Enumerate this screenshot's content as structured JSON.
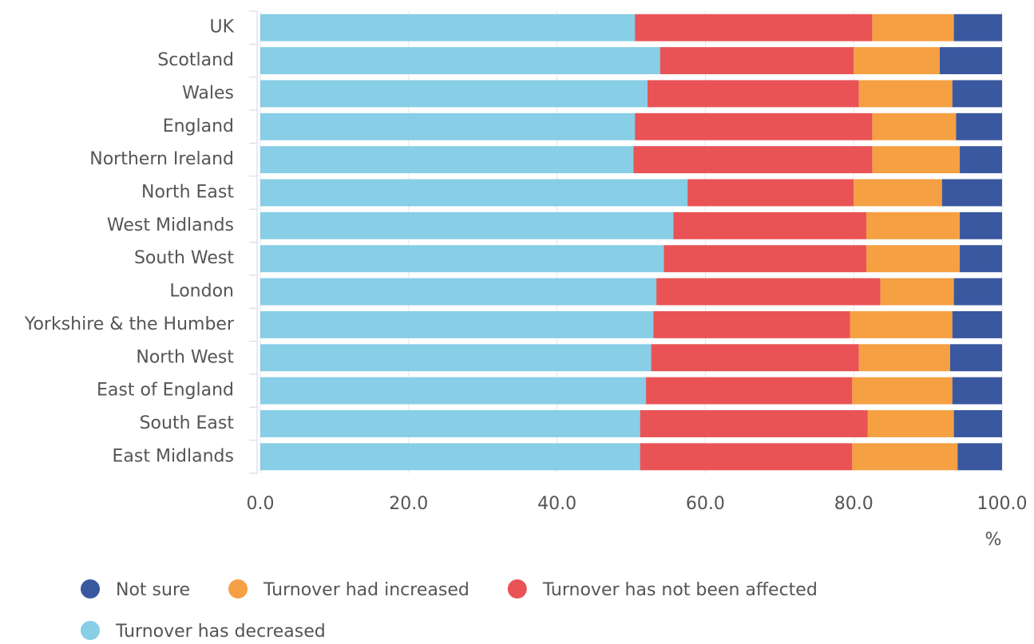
{
  "chart_data": {
    "type": "stacked_barh",
    "categories": [
      "UK",
      "Scotland",
      "Wales",
      "England",
      "Northern Ireland",
      "North East",
      "West Midlands",
      "South West",
      "London",
      "Yorkshire & the Humber",
      "North West",
      "East of England",
      "South East",
      "East Midlands"
    ],
    "series": [
      {
        "name": "Turnover has decreased",
        "color": "#87cee6",
        "values": [
          50.5,
          53.9,
          52.2,
          50.5,
          50.3,
          57.6,
          55.7,
          54.4,
          53.4,
          53.0,
          52.7,
          52.0,
          51.2,
          51.2
        ]
      },
      {
        "name": "Turnover has not been affected",
        "color": "#e95355",
        "values": [
          32.0,
          26.1,
          28.5,
          32.0,
          32.2,
          22.4,
          26.0,
          27.3,
          30.2,
          26.5,
          28.0,
          27.8,
          30.7,
          28.6
        ]
      },
      {
        "name": "Turnover had increased",
        "color": "#f5a042",
        "values": [
          11.0,
          11.6,
          12.6,
          11.3,
          11.8,
          11.9,
          12.6,
          12.6,
          9.9,
          13.8,
          12.3,
          13.5,
          11.6,
          14.2
        ]
      },
      {
        "name": "Not sure",
        "color": "#3a58a0",
        "values": [
          6.5,
          8.4,
          6.7,
          6.2,
          5.7,
          8.1,
          5.7,
          5.7,
          6.5,
          6.7,
          7.0,
          6.7,
          6.5,
          6.0
        ]
      }
    ],
    "xlabel": "%",
    "xlim": [
      0,
      100
    ],
    "xticks": [
      {
        "value": 0,
        "label": "0.0"
      },
      {
        "value": 20,
        "label": "20.0"
      },
      {
        "value": 40,
        "label": "40.0"
      },
      {
        "value": 60,
        "label": "60.0"
      },
      {
        "value": 80,
        "label": "80.0"
      },
      {
        "value": 100,
        "label": "100.0"
      }
    ],
    "grid": true
  }
}
